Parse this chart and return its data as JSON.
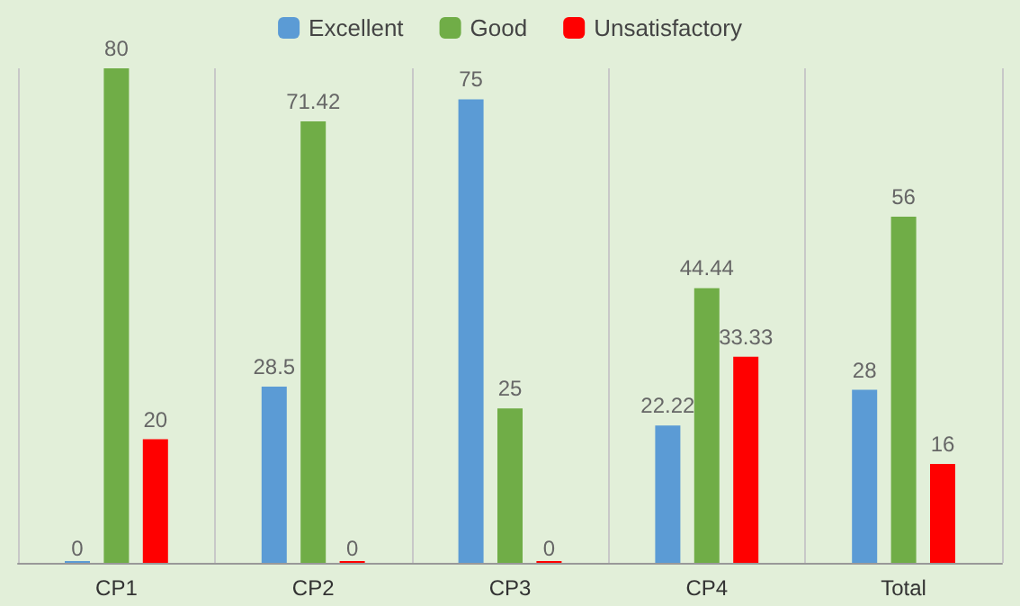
{
  "chart_data": {
    "type": "bar",
    "categories": [
      "CP1",
      "CP2",
      "CP3",
      "CP4",
      "Total"
    ],
    "series": [
      {
        "name": "Excellent",
        "color": "#5b9bd5",
        "values": [
          0,
          28.5,
          75,
          22.22,
          28
        ]
      },
      {
        "name": "Good",
        "color": "#70ad47",
        "values": [
          80,
          71.42,
          25,
          44.44,
          56
        ]
      },
      {
        "name": "Unsatisfactory",
        "color": "#ff0000",
        "values": [
          20,
          0,
          0,
          33.33,
          16
        ]
      }
    ],
    "data_labels": true,
    "grid": "x",
    "legend": "top"
  }
}
